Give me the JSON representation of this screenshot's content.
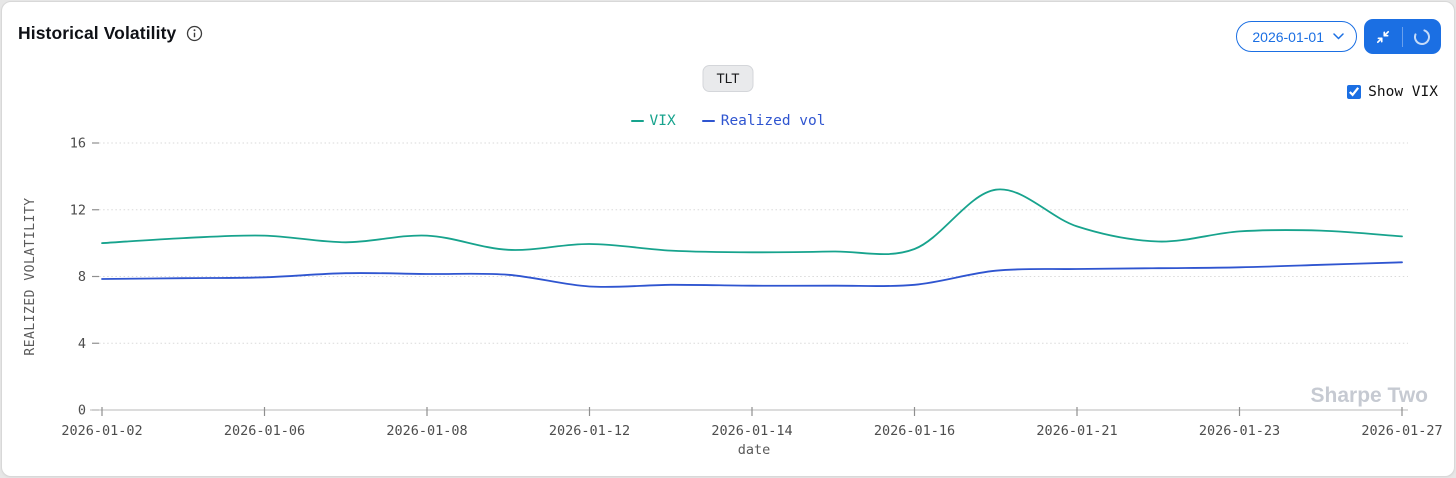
{
  "header": {
    "title": "Historical Volatility",
    "date_select": {
      "value": "2026-01-01"
    },
    "ticker_tab": "TLT",
    "show_vix": {
      "label": "Show VIX",
      "checked": true
    }
  },
  "watermark": "Sharpe Two",
  "colors": {
    "accent_blue": "#1b6fe3",
    "vix_line": "#17a38d",
    "realized_line": "#2f55d0",
    "grid": "#dadada",
    "axis_line": "#c6c6c6",
    "tick_mark": "#8f8f8f",
    "tick_text": "#4d4d4d",
    "axis_title_text": "#5a5a5a",
    "watermark_text": "#c6cad2"
  },
  "chart_data": {
    "type": "line",
    "x": [
      "2026-01-02",
      "2026-01-05",
      "2026-01-06",
      "2026-01-07",
      "2026-01-08",
      "2026-01-09",
      "2026-01-12",
      "2026-01-13",
      "2026-01-14",
      "2026-01-15",
      "2026-01-16",
      "2026-01-20",
      "2026-01-21",
      "2026-01-22",
      "2026-01-23",
      "2026-01-26",
      "2026-01-27"
    ],
    "series": [
      {
        "name": "VIX",
        "color": "#17a38d",
        "values": [
          10.0,
          10.3,
          10.45,
          10.05,
          10.45,
          9.6,
          9.95,
          9.55,
          9.45,
          9.5,
          9.65,
          13.2,
          11.0,
          10.1,
          10.7,
          10.75,
          10.4
        ]
      },
      {
        "name": "Realized vol",
        "color": "#2f55d0",
        "values": [
          7.85,
          7.9,
          7.95,
          8.2,
          8.15,
          8.1,
          7.4,
          7.5,
          7.45,
          7.45,
          7.5,
          8.35,
          8.45,
          8.5,
          8.55,
          8.7,
          8.85
        ]
      }
    ],
    "xlabel": "date",
    "ylabel": "REALIZED VOLATILITY",
    "ylim": [
      0,
      16
    ],
    "yticks": [
      0,
      4,
      8,
      12,
      16
    ],
    "xtick_indices": [
      0,
      2,
      4,
      6,
      8,
      10,
      12,
      14,
      16
    ],
    "xtick_labels": [
      "2026-01-02",
      "2026-01-06",
      "2026-01-08",
      "2026-01-12",
      "2026-01-14",
      "2026-01-16",
      "2026-01-21",
      "2026-01-23",
      "2026-01-27"
    ],
    "grid": "horizontal-dotted",
    "legend_position": "top-center"
  }
}
